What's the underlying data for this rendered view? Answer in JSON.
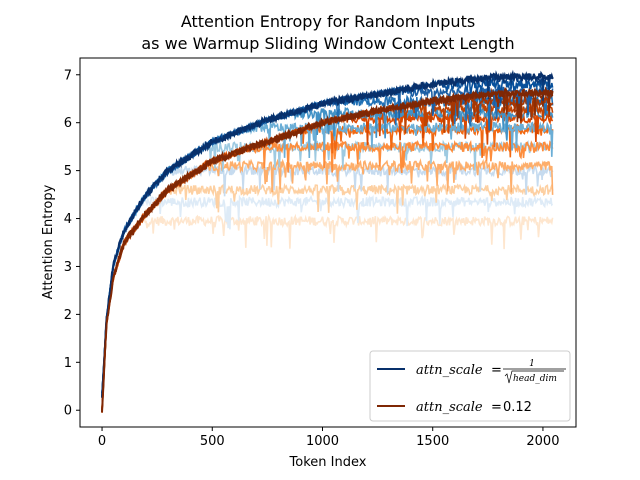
{
  "chart_data": {
    "type": "line",
    "title_line1": "Attention Entropy for Random Inputs",
    "title_line2": "as we Warmup Sliding Window Context Length",
    "xlabel": "Token Index",
    "ylabel": "Attention Entropy",
    "xlim": [
      -100,
      2150
    ],
    "ylim": [
      -0.35,
      7.35
    ],
    "x_ticks": [
      0,
      500,
      1000,
      1500,
      2000
    ],
    "y_ticks": [
      0,
      1,
      2,
      3,
      4,
      5,
      6,
      7
    ],
    "x_max": 2047,
    "grid": false,
    "legend_position": "lower-right",
    "legend": [
      {
        "key": "blue",
        "prefix": "attn_scale",
        "eq": "=",
        "numerator": "1",
        "denominator": "head_dim",
        "color": "#08306b"
      },
      {
        "key": "orange",
        "prefix": "attn_scale",
        "eq": "=",
        "value": "0.12",
        "color": "#7f2704"
      }
    ],
    "series": [
      {
        "family": "blue",
        "plateau": 4.35,
        "shade": "#deebf7"
      },
      {
        "family": "blue",
        "plateau": 5.0,
        "shade": "#c6dbef"
      },
      {
        "family": "blue",
        "plateau": 5.5,
        "shade": "#9ecae1"
      },
      {
        "family": "blue",
        "plateau": 5.9,
        "shade": "#6baed6"
      },
      {
        "family": "blue",
        "plateau": 6.2,
        "shade": "#4292c6"
      },
      {
        "family": "blue",
        "plateau": 6.45,
        "shade": "#2171b5"
      },
      {
        "family": "blue",
        "plateau": 6.65,
        "shade": "#1c5fa5"
      },
      {
        "family": "blue",
        "plateau": 6.8,
        "shade": "#08519c"
      },
      {
        "family": "blue",
        "plateau": 6.93,
        "shade": "#083d7f"
      },
      {
        "family": "orange",
        "plateau": 3.95,
        "shade": "#fee6ce"
      },
      {
        "family": "orange",
        "plateau": 4.6,
        "shade": "#fdd0a2"
      },
      {
        "family": "orange",
        "plateau": 5.1,
        "shade": "#fdae6b"
      },
      {
        "family": "orange",
        "plateau": 5.5,
        "shade": "#fd8d3c"
      },
      {
        "family": "orange",
        "plateau": 5.85,
        "shade": "#f16913"
      },
      {
        "family": "orange",
        "plateau": 6.1,
        "shade": "#d94801"
      },
      {
        "family": "orange",
        "plateau": 6.3,
        "shade": "#c04302"
      },
      {
        "family": "orange",
        "plateau": 6.45,
        "shade": "#a63603"
      },
      {
        "family": "orange",
        "plateau": 6.6,
        "shade": "#8c2d04"
      }
    ],
    "envelopes": [
      {
        "family": "blue",
        "color": "#08306b",
        "points": [
          [
            0,
            0.3
          ],
          [
            20,
            1.9
          ],
          [
            50,
            3.0
          ],
          [
            100,
            3.75
          ],
          [
            200,
            4.5
          ],
          [
            300,
            5.0
          ],
          [
            500,
            5.6
          ],
          [
            750,
            6.05
          ],
          [
            1000,
            6.4
          ],
          [
            1250,
            6.6
          ],
          [
            1500,
            6.8
          ],
          [
            1750,
            6.95
          ],
          [
            2047,
            6.97
          ]
        ]
      },
      {
        "family": "orange",
        "color": "#7f2704",
        "points": [
          [
            0,
            0.0
          ],
          [
            20,
            1.8
          ],
          [
            50,
            2.75
          ],
          [
            100,
            3.5
          ],
          [
            200,
            4.1
          ],
          [
            300,
            4.6
          ],
          [
            500,
            5.2
          ],
          [
            750,
            5.6
          ],
          [
            1000,
            6.0
          ],
          [
            1250,
            6.25
          ],
          [
            1500,
            6.45
          ],
          [
            1750,
            6.6
          ],
          [
            2047,
            6.62
          ]
        ]
      }
    ]
  }
}
